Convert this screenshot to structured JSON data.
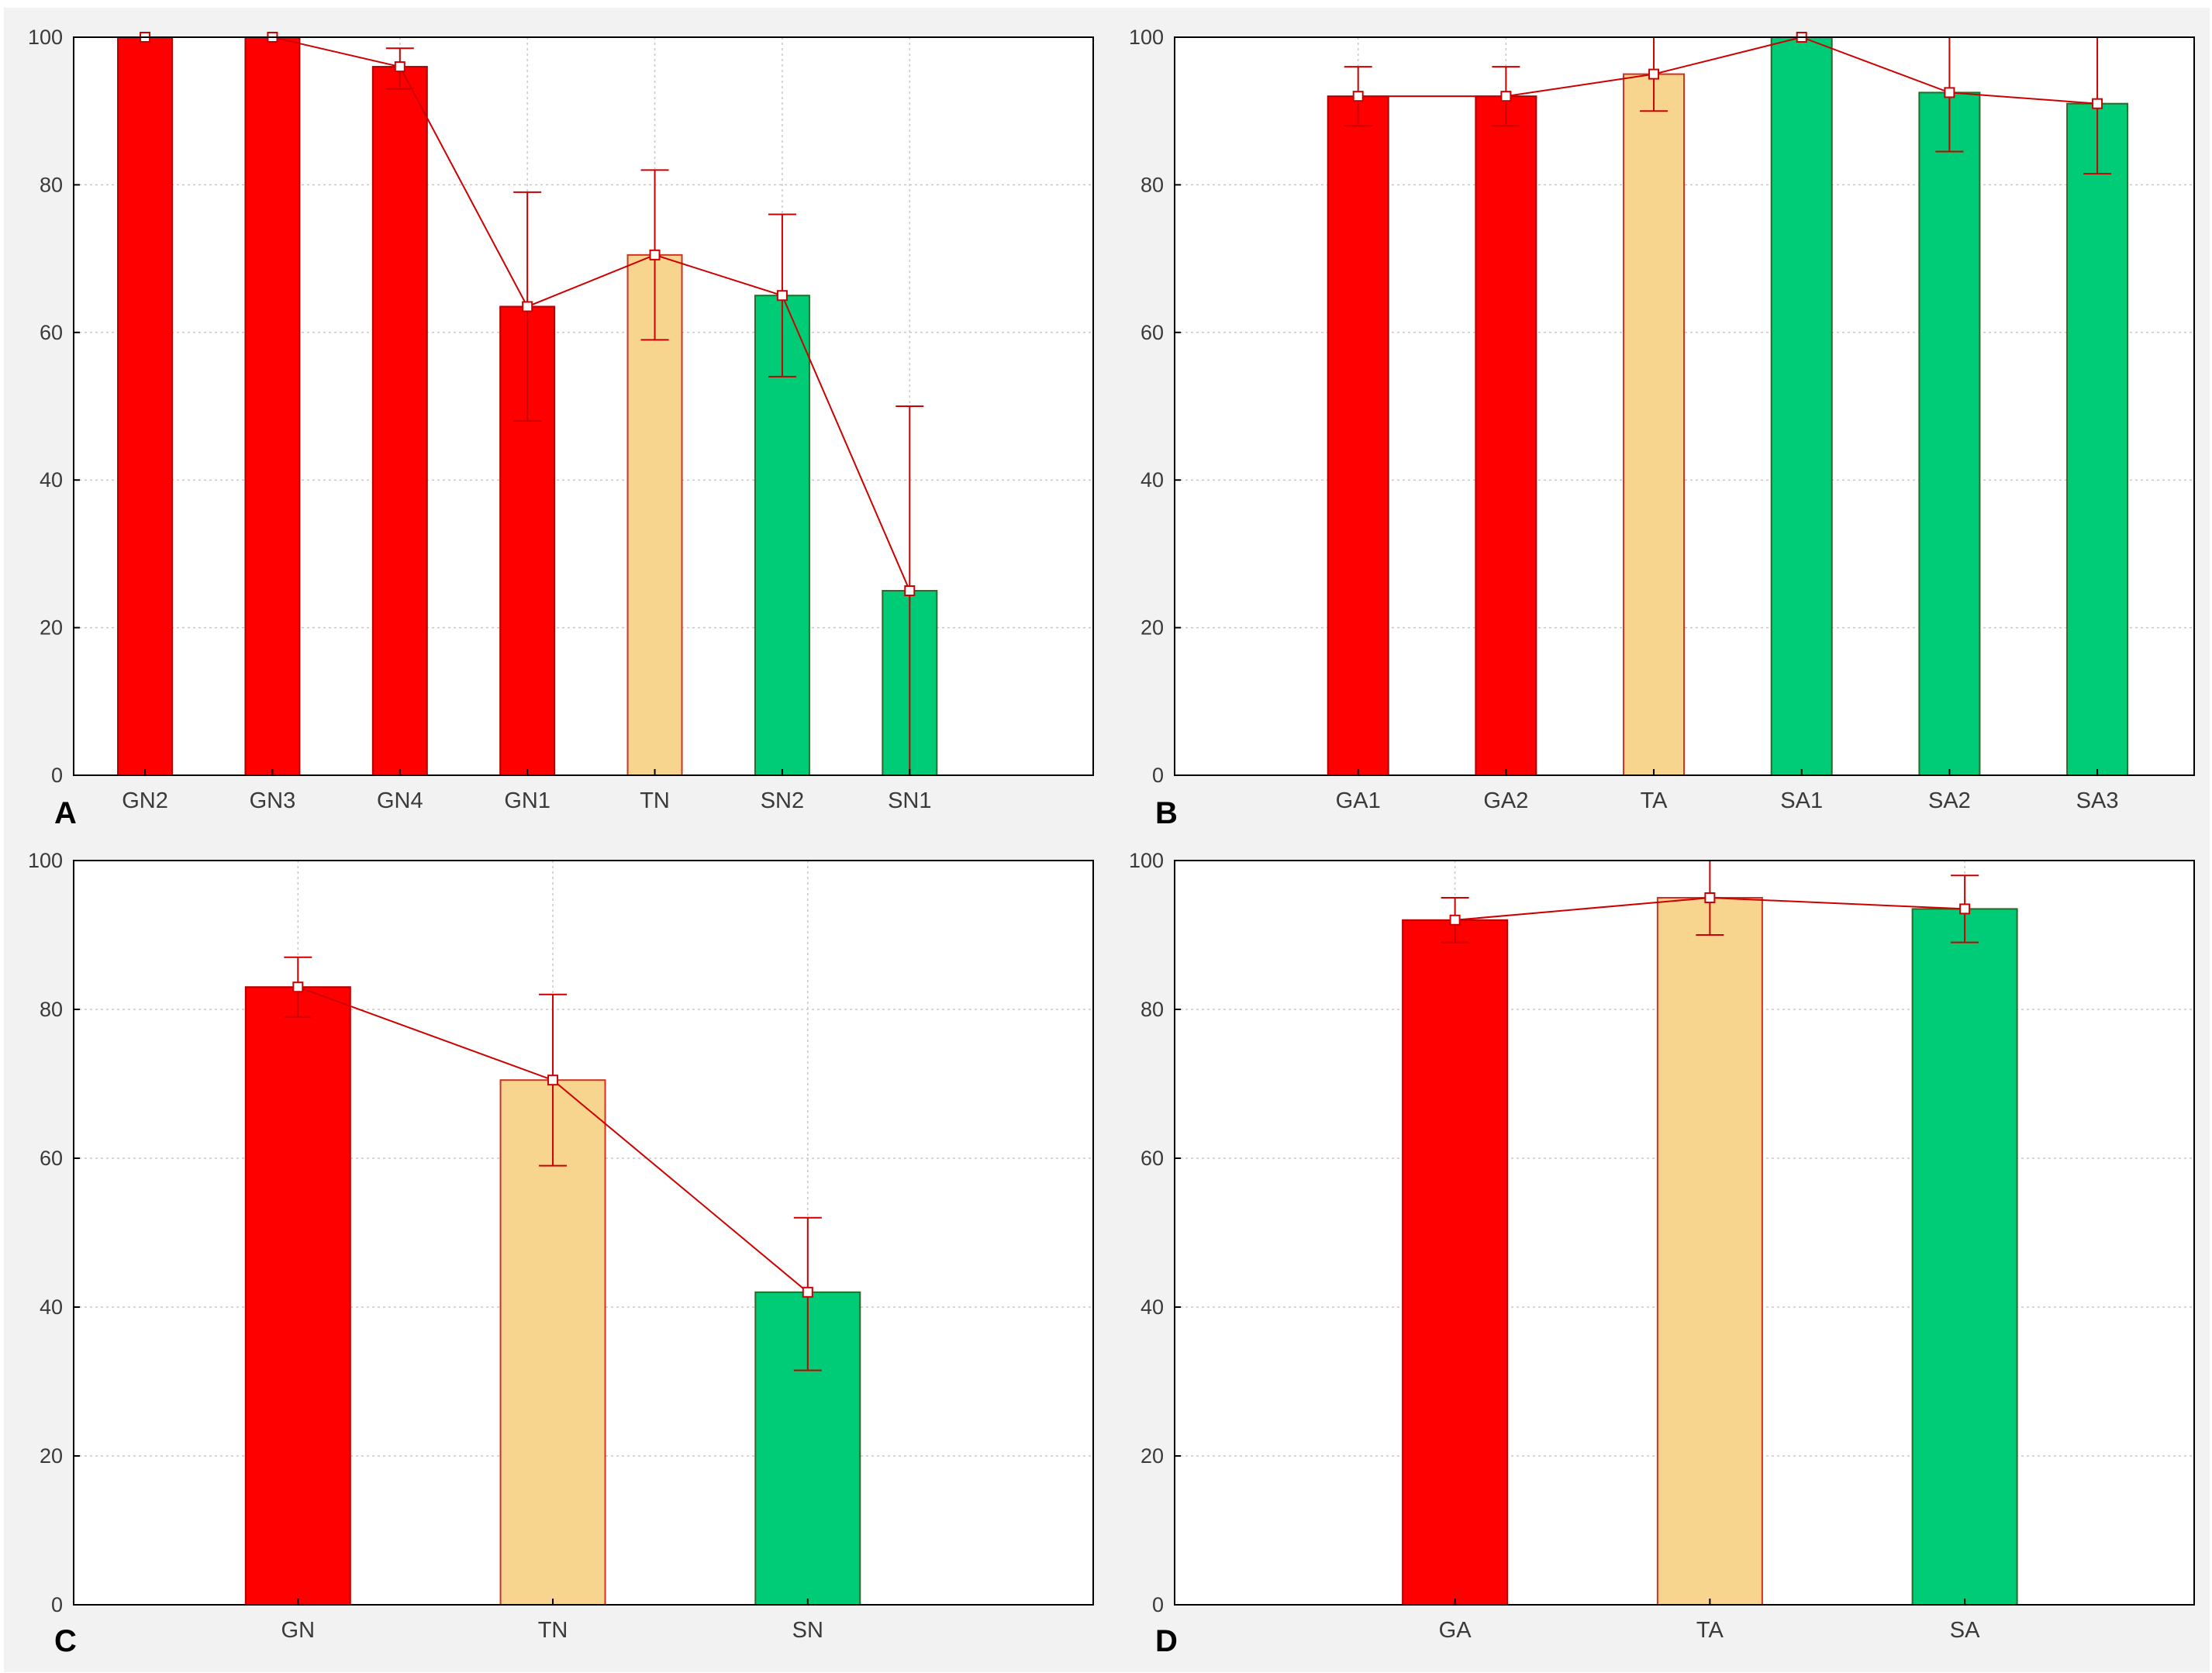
{
  "figure": {
    "panels": [
      "A",
      "B",
      "C",
      "D"
    ]
  },
  "colors": {
    "red": "#ff0000",
    "tan": "#f8d58e",
    "green": "#00cc77",
    "line": "#cc0000",
    "grid": "#c8c8c8",
    "frame": "#000000",
    "plot_bg": "#ffffff"
  },
  "chart_data": [
    {
      "type": "bar",
      "panel_letter": "A",
      "categories": [
        "GN2",
        "GN3",
        "GN4",
        "GN1",
        "TN",
        "SN2",
        "SN1"
      ],
      "values": [
        100,
        100,
        96,
        63.5,
        70.5,
        65,
        25
      ],
      "error_low": [
        100,
        100,
        93,
        48,
        59,
        54,
        0
      ],
      "error_high": [
        100,
        100,
        98.5,
        79,
        82,
        76,
        50
      ],
      "bar_colors": [
        "red",
        "red",
        "red",
        "red",
        "tan",
        "green",
        "green"
      ],
      "ylim": [
        0,
        100
      ],
      "yticks": [
        0,
        20,
        40,
        60,
        80,
        100
      ],
      "grid": true,
      "xlabel": "",
      "ylabel": "",
      "title": ""
    },
    {
      "type": "bar",
      "panel_letter": "B",
      "categories": [
        "GA1",
        "GA2",
        "TA",
        "SA1",
        "SA2",
        "SA3"
      ],
      "values": [
        92,
        92,
        95,
        100,
        92.5,
        91
      ],
      "error_low": [
        88,
        88,
        90,
        100,
        84.5,
        81.5
      ],
      "error_high": [
        96,
        96,
        100,
        100,
        100,
        100
      ],
      "bar_colors": [
        "red",
        "red",
        "tan",
        "green",
        "green",
        "green"
      ],
      "ylim": [
        0,
        100
      ],
      "yticks": [
        0,
        20,
        40,
        60,
        80,
        100
      ],
      "grid": true,
      "xlabel": "",
      "ylabel": "",
      "title": ""
    },
    {
      "type": "bar",
      "panel_letter": "C",
      "categories": [
        "GN",
        "TN",
        "SN"
      ],
      "values": [
        83,
        70.5,
        42
      ],
      "error_low": [
        79,
        59,
        31.5
      ],
      "error_high": [
        87,
        82,
        52
      ],
      "bar_colors": [
        "red",
        "tan",
        "green"
      ],
      "ylim": [
        0,
        100
      ],
      "yticks": [
        0,
        20,
        40,
        60,
        80,
        100
      ],
      "grid": true,
      "xlabel": "",
      "ylabel": "",
      "title": ""
    },
    {
      "type": "bar",
      "panel_letter": "D",
      "categories": [
        "GA",
        "TA",
        "SA"
      ],
      "values": [
        92,
        95,
        93.5
      ],
      "error_low": [
        89,
        90,
        89
      ],
      "error_high": [
        95,
        100,
        98
      ],
      "bar_colors": [
        "red",
        "tan",
        "green"
      ],
      "ylim": [
        0,
        100
      ],
      "yticks": [
        0,
        20,
        40,
        60,
        80,
        100
      ],
      "grid": true,
      "xlabel": "",
      "ylabel": "",
      "title": ""
    }
  ]
}
